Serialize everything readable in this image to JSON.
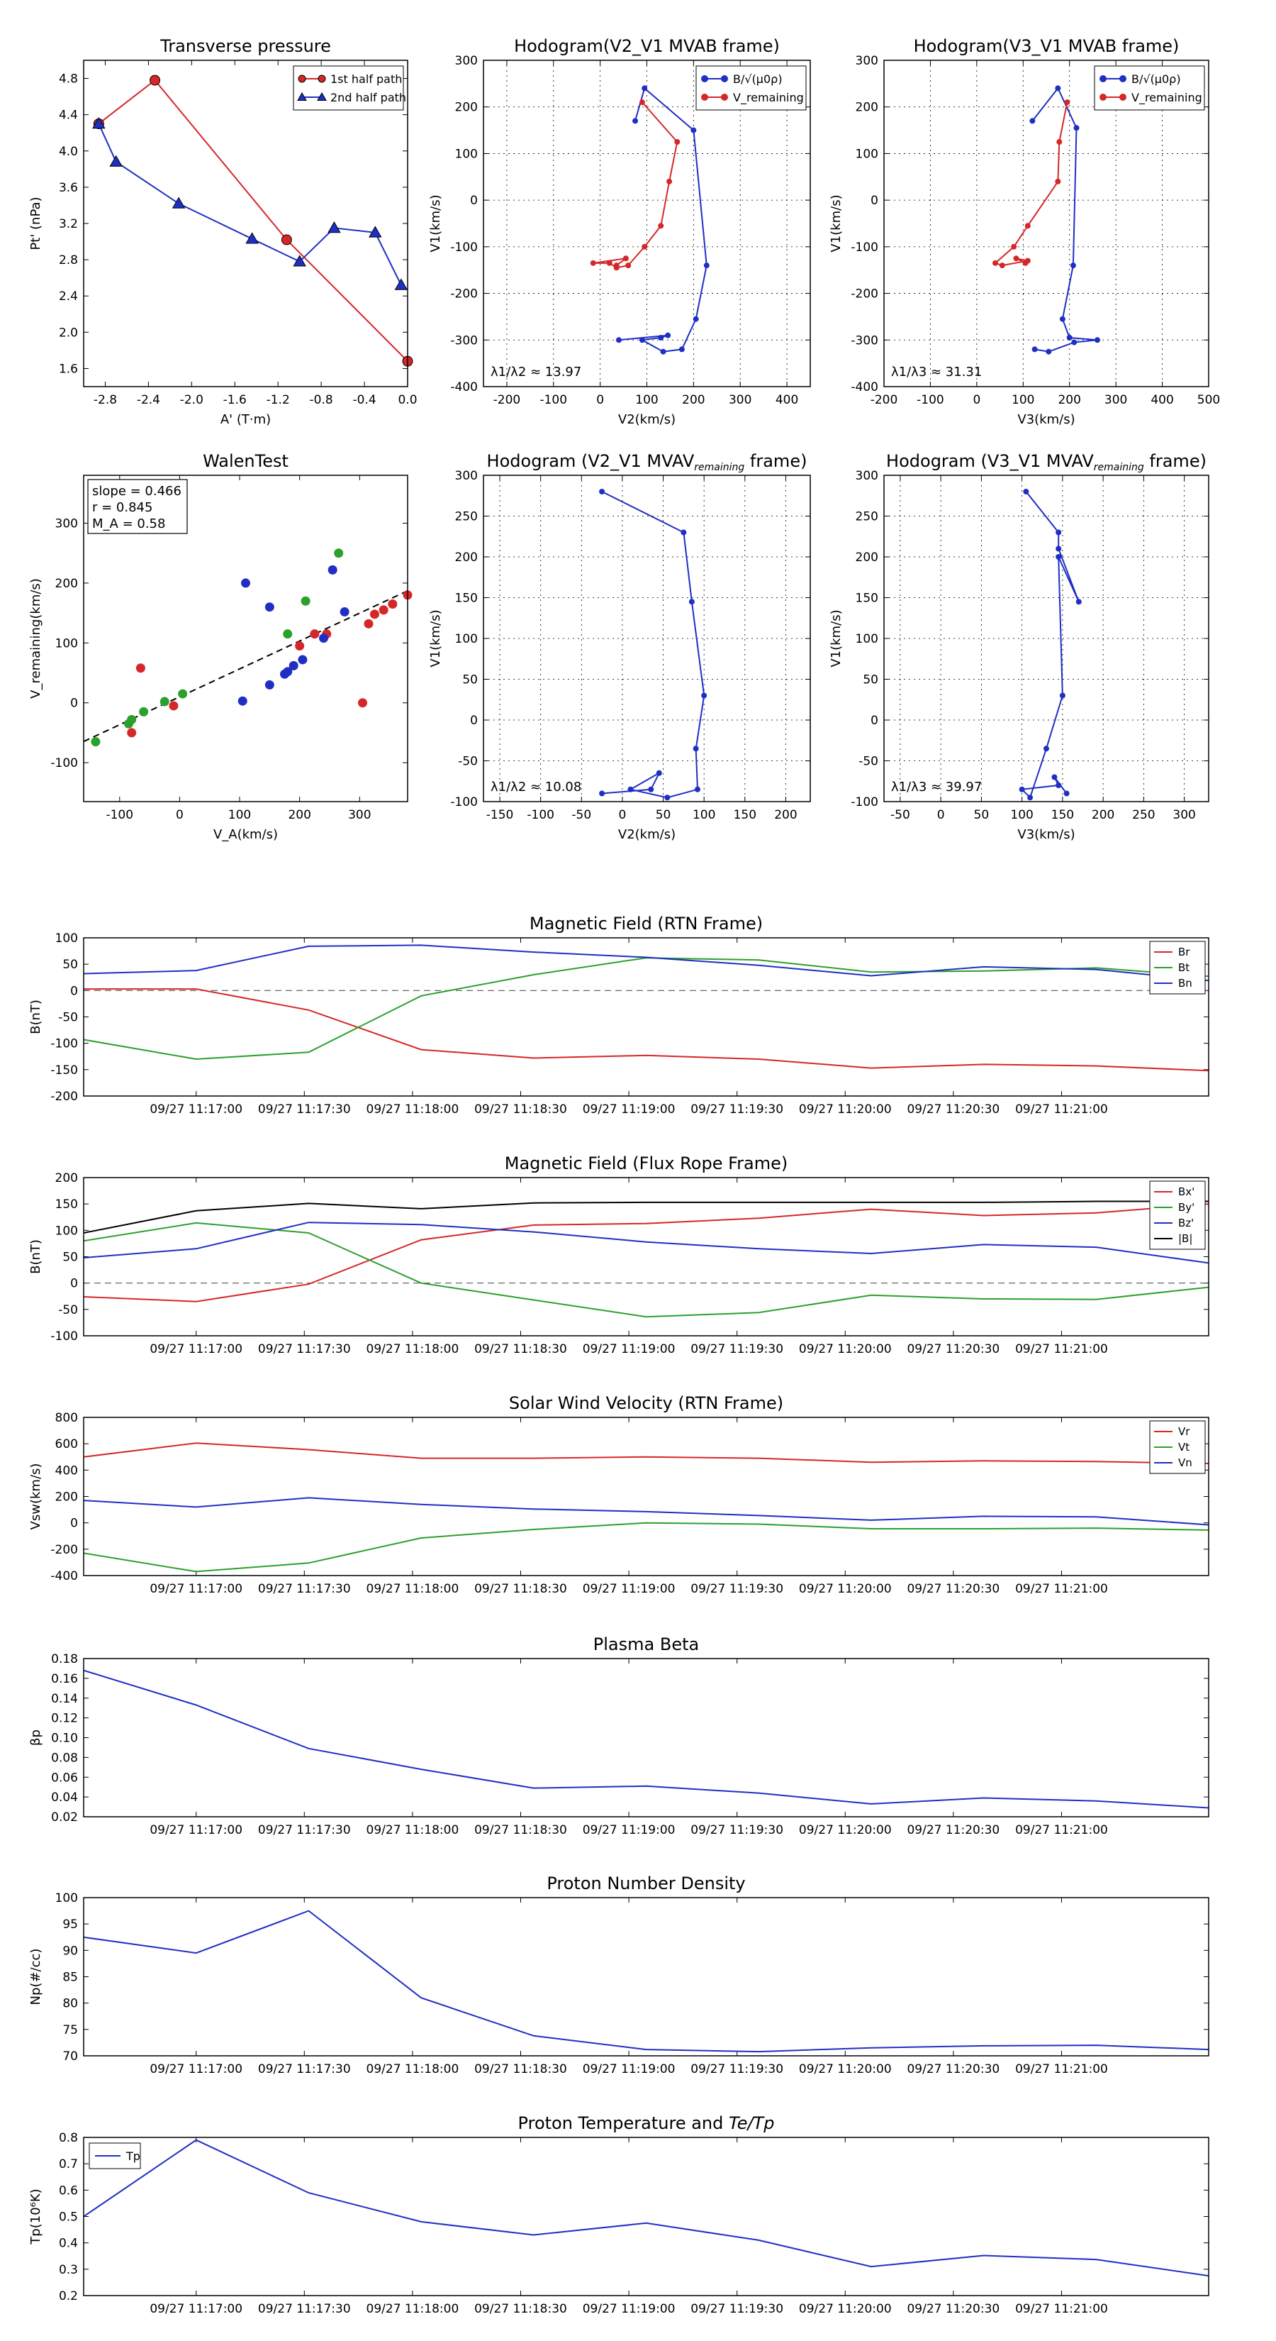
{
  "chart_data": [
    {
      "id": "tp",
      "type": "line",
      "title": "Transverse pressure",
      "xlabel": "A' (T·m)",
      "ylabel": "Pt' (nPa)",
      "xlim": [
        -3.0,
        0.0
      ],
      "ylim": [
        1.4,
        5.0
      ],
      "xticks": [
        -2.8,
        -2.4,
        -2.0,
        -1.6,
        -1.2,
        -0.8,
        -0.4,
        0.0
      ],
      "yticks": [
        1.6,
        2.0,
        2.4,
        2.8,
        3.2,
        3.6,
        4.0,
        4.4,
        4.8
      ],
      "legend": "top-right",
      "series": [
        {
          "name": "1st half path",
          "color": "#d62728",
          "marker": "circle",
          "x": [
            -2.86,
            -2.34,
            -1.12,
            0.0
          ],
          "y": [
            4.3,
            4.78,
            3.02,
            1.68
          ]
        },
        {
          "name": "2nd half path",
          "color": "#1f2fc4",
          "marker": "triangle",
          "x": [
            -2.86,
            -2.7,
            -2.12,
            -1.44,
            -1.0,
            -0.68,
            -0.3,
            -0.06
          ],
          "y": [
            4.3,
            3.88,
            3.42,
            3.03,
            2.78,
            3.15,
            3.1,
            2.52
          ]
        }
      ]
    },
    {
      "id": "h1",
      "type": "line",
      "title": "Hodogram(V2_V1 MVAB frame)",
      "xlabel": "V2(km/s)",
      "ylabel": "V1(km/s)",
      "xlim": [
        -250,
        450
      ],
      "ylim": [
        -400,
        300
      ],
      "xticks": [
        -200,
        -100,
        0,
        100,
        200,
        300,
        400
      ],
      "yticks": [
        -400,
        -300,
        -200,
        -100,
        0,
        100,
        200,
        300
      ],
      "grid": true,
      "legend": "top-right",
      "annotation": "λ1/λ2 ≈ 13.97",
      "series": [
        {
          "name": "B/√(μ0ρ)",
          "color": "#1f2fc4",
          "x": [
            75,
            95,
            200,
            228,
            205,
            175,
            135,
            90,
            130,
            145,
            40
          ],
          "y": [
            170,
            240,
            150,
            -140,
            -255,
            -320,
            -325,
            -300,
            -295,
            -290,
            -300
          ]
        },
        {
          "name": "V_remaining",
          "color": "#d62728",
          "x": [
            90,
            165,
            148,
            130,
            95,
            60,
            35,
            20,
            -15,
            55,
            35
          ],
          "y": [
            210,
            125,
            40,
            -55,
            -100,
            -140,
            -145,
            -135,
            -135,
            -125,
            -140
          ]
        }
      ]
    },
    {
      "id": "h2",
      "type": "line",
      "title": "Hodogram(V3_V1 MVAB frame)",
      "xlabel": "V3(km/s)",
      "ylabel": "V1(km/s)",
      "xlim": [
        -200,
        500
      ],
      "ylim": [
        -400,
        300
      ],
      "xticks": [
        -200,
        -100,
        0,
        100,
        200,
        300,
        400,
        500
      ],
      "yticks": [
        -400,
        -300,
        -200,
        -100,
        0,
        100,
        200,
        300
      ],
      "grid": true,
      "legend": "top-right",
      "annotation": "λ1/λ3 ≈ 31.31",
      "series": [
        {
          "name": "B/√(μ0ρ)",
          "color": "#1f2fc4",
          "x": [
            120,
            175,
            215,
            208,
            185,
            200,
            260,
            210,
            155,
            125
          ],
          "y": [
            170,
            240,
            155,
            -140,
            -255,
            -295,
            -300,
            -305,
            -325,
            -320
          ]
        },
        {
          "name": "V_remaining",
          "color": "#d62728",
          "x": [
            195,
            178,
            175,
            110,
            80,
            40,
            55,
            110,
            85,
            105
          ],
          "y": [
            210,
            125,
            40,
            -55,
            -100,
            -135,
            -140,
            -130,
            -125,
            -135
          ]
        }
      ]
    },
    {
      "id": "walen",
      "type": "scatter",
      "title": "WalenTest",
      "xlabel": "V_A(km/s)",
      "ylabel": "V_remaining(km/s)",
      "xlim": [
        -160,
        380
      ],
      "ylim": [
        -165,
        380
      ],
      "xticks": [
        -100,
        0,
        100,
        200,
        300
      ],
      "yticks": [
        -100,
        0,
        100,
        200,
        300
      ],
      "stats": [
        "slope = 0.466",
        "r = 0.845",
        "M_A = 0.58"
      ],
      "fit": {
        "slope": 0.466,
        "intercept": 10
      },
      "series": [
        {
          "color": "#d62728",
          "x": [
            -65,
            -80,
            -10,
            200,
            225,
            245,
            315,
            325,
            340,
            355,
            380,
            305
          ],
          "y": [
            58,
            -50,
            -5,
            95,
            115,
            115,
            132,
            148,
            155,
            165,
            180,
            0
          ]
        },
        {
          "color": "#2ca02c",
          "x": [
            -140,
            -85,
            -80,
            -60,
            -25,
            5,
            180,
            210,
            265
          ],
          "y": [
            -65,
            -35,
            -28,
            -15,
            2,
            15,
            115,
            170,
            250
          ]
        },
        {
          "color": "#1f2fc4",
          "x": [
            110,
            150,
            105,
            150,
            175,
            180,
            190,
            205,
            240,
            255,
            275
          ],
          "y": [
            200,
            160,
            3,
            30,
            48,
            52,
            62,
            72,
            108,
            222,
            152
          ]
        }
      ]
    },
    {
      "id": "h3",
      "type": "line",
      "title": "Hodogram (V2_V1 MVAV",
      "title_sub": "remaining",
      "title_end": " frame)",
      "xlabel": "V2(km/s)",
      "ylabel": "V1(km/s)",
      "xlim": [
        -170,
        230
      ],
      "ylim": [
        -100,
        300
      ],
      "xticks": [
        -150,
        -100,
        -50,
        0,
        50,
        100,
        150,
        200
      ],
      "yticks": [
        -100,
        -50,
        0,
        50,
        100,
        150,
        200,
        250,
        300
      ],
      "grid": true,
      "annotation": "λ1/λ2 ≈ 10.08",
      "series": [
        {
          "color": "#1f2fc4",
          "x": [
            -25,
            75,
            85,
            100,
            90,
            92,
            55,
            10,
            45,
            35,
            -25
          ],
          "y": [
            280,
            230,
            145,
            30,
            -35,
            -85,
            -95,
            -85,
            -65,
            -85,
            -90
          ]
        }
      ]
    },
    {
      "id": "h4",
      "type": "line",
      "title": "Hodogram (V3_V1 MVAV",
      "title_sub": "remaining",
      "title_end": " frame)",
      "xlabel": "V3(km/s)",
      "ylabel": "V1(km/s)",
      "xlim": [
        -70,
        330
      ],
      "ylim": [
        -100,
        300
      ],
      "xticks": [
        -50,
        0,
        50,
        100,
        150,
        200,
        250,
        300
      ],
      "yticks": [
        -100,
        -50,
        0,
        50,
        100,
        150,
        200,
        250,
        300
      ],
      "grid": true,
      "annotation": "λ1/λ3 ≈ 39.97",
      "series": [
        {
          "color": "#1f2fc4",
          "x": [
            105,
            145,
            145,
            170,
            145,
            150,
            130,
            110,
            100,
            145,
            140,
            155
          ],
          "y": [
            280,
            230,
            210,
            145,
            200,
            30,
            -35,
            -95,
            -85,
            -80,
            -70,
            -90
          ]
        }
      ]
    },
    {
      "id": "ts1",
      "type": "line",
      "title": "Magnetic Field (RTN Frame)",
      "ylabel": "B(nT)",
      "ylim": [
        -200,
        100
      ],
      "yticks": [
        -200,
        -150,
        -100,
        -50,
        0,
        50,
        100
      ],
      "zero_line": true,
      "legend": "top-right",
      "series": [
        {
          "name": "Br",
          "color": "#d62728",
          "values": [
            3,
            3,
            -37,
            -112,
            -128,
            -123,
            -130,
            -147,
            -140,
            -143,
            -152
          ]
        },
        {
          "name": "Bt",
          "color": "#2ca02c",
          "values": [
            -93,
            -130,
            -117,
            -10,
            30,
            62,
            58,
            35,
            37,
            43,
            27
          ]
        },
        {
          "name": "Bn",
          "color": "#1f2fc4",
          "values": [
            32,
            38,
            84,
            86,
            73,
            63,
            48,
            28,
            45,
            40,
            19
          ]
        }
      ]
    },
    {
      "id": "ts2",
      "type": "line",
      "title": "Magnetic Field (Flux Rope Frame)",
      "ylabel": "B(nT)",
      "ylim": [
        -100,
        200
      ],
      "yticks": [
        -100,
        -50,
        0,
        50,
        100,
        150,
        200
      ],
      "zero_line": true,
      "legend": "top-right",
      "series": [
        {
          "name": "Bx'",
          "color": "#d62728",
          "values": [
            -26,
            -35,
            -2,
            82,
            110,
            113,
            123,
            140,
            128,
            133,
            150
          ]
        },
        {
          "name": "By'",
          "color": "#2ca02c",
          "values": [
            80,
            114,
            95,
            0,
            -32,
            -64,
            -56,
            -23,
            -30,
            -31,
            -8
          ]
        },
        {
          "name": "Bz'",
          "color": "#1f2fc4",
          "values": [
            48,
            65,
            115,
            111,
            97,
            78,
            65,
            56,
            73,
            68,
            38
          ]
        },
        {
          "name": "|B|",
          "color": "#000000",
          "values": [
            95,
            137,
            151,
            141,
            152,
            153,
            153,
            153,
            153,
            155,
            155
          ]
        }
      ]
    },
    {
      "id": "ts3",
      "type": "line",
      "title": "Solar Wind Velocity (RTN Frame)",
      "ylabel": "Vsw(km/s)",
      "ylim": [
        -400,
        800
      ],
      "yticks": [
        -400,
        -200,
        0,
        200,
        400,
        600,
        800
      ],
      "legend": "top-right",
      "series": [
        {
          "name": "Vr",
          "color": "#d62728",
          "values": [
            500,
            605,
            555,
            490,
            490,
            500,
            490,
            460,
            470,
            465,
            450
          ]
        },
        {
          "name": "Vt",
          "color": "#2ca02c",
          "values": [
            -230,
            -370,
            -305,
            -115,
            -50,
            0,
            -10,
            -45,
            -45,
            -40,
            -55
          ]
        },
        {
          "name": "Vn",
          "color": "#1f2fc4",
          "values": [
            170,
            120,
            190,
            140,
            105,
            85,
            55,
            20,
            50,
            45,
            -15
          ]
        }
      ]
    },
    {
      "id": "ts4",
      "type": "line",
      "title": "Plasma Beta",
      "ylabel": "βp",
      "ylim": [
        0.02,
        0.18
      ],
      "yticks": [
        0.02,
        0.04,
        0.06,
        0.08,
        0.1,
        0.12,
        0.14,
        0.16,
        0.18
      ],
      "series": [
        {
          "name": "beta",
          "color": "#1f2fc4",
          "values": [
            0.168,
            0.133,
            0.089,
            0.068,
            0.049,
            0.051,
            0.044,
            0.033,
            0.039,
            0.036,
            0.029
          ]
        }
      ]
    },
    {
      "id": "ts5",
      "type": "line",
      "title": "Proton Number Density",
      "ylabel": "Np(#/cc)",
      "ylim": [
        70,
        100
      ],
      "yticks": [
        70,
        75,
        80,
        85,
        90,
        95,
        100
      ],
      "series": [
        {
          "name": "Np",
          "color": "#1f2fc4",
          "values": [
            92.5,
            89.5,
            97.5,
            81,
            73.8,
            71.2,
            70.8,
            71.5,
            71.9,
            72,
            71.2
          ]
        }
      ]
    },
    {
      "id": "ts6",
      "type": "line",
      "title": "Proton Temperature and ",
      "title_tail": "Te/Tp",
      "ylabel": "Tp(10⁶K)",
      "ylim": [
        0.2,
        0.8
      ],
      "yticks": [
        0.2,
        0.3,
        0.4,
        0.5,
        0.6,
        0.7,
        0.8
      ],
      "legend": "top-left",
      "series": [
        {
          "name": "Tp",
          "color": "#1f2fc4",
          "values": [
            0.5,
            0.79,
            0.59,
            0.48,
            0.43,
            0.475,
            0.41,
            0.31,
            0.352,
            0.337,
            0.275
          ]
        }
      ]
    }
  ],
  "time_axis": {
    "labels": [
      "09/27 11:17:00",
      "09/27 11:17:30",
      "09/27 11:18:00",
      "09/27 11:18:30",
      "09/27 11:19:00",
      "09/27 11:19:30",
      "09/27 11:20:00",
      "09/27 11:20:30",
      "09/27 11:21:00"
    ],
    "sample_minutes": [
      -0.52,
      0.0,
      0.52,
      1.04,
      1.56,
      2.08,
      2.6,
      3.12,
      3.64,
      4.16,
      4.68
    ],
    "range_minutes": [
      -0.52,
      4.68
    ]
  }
}
